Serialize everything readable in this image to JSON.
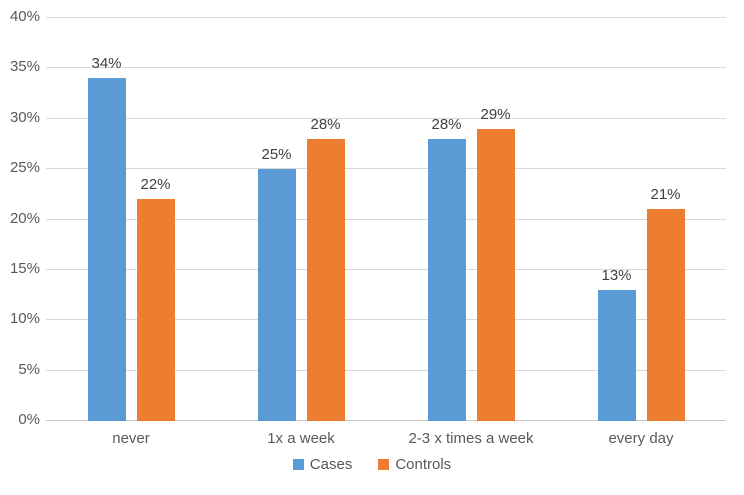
{
  "chart_data": {
    "type": "bar",
    "categories": [
      "never",
      "1x a week",
      "2-3 x times a week",
      "every day"
    ],
    "series": [
      {
        "name": "Cases",
        "color": "#5b9bd5",
        "values": [
          34,
          25,
          28,
          13
        ],
        "labels": [
          "34%",
          "25%",
          "28%",
          "13%"
        ]
      },
      {
        "name": "Controls",
        "color": "#ed7d31",
        "values": [
          22,
          28,
          29,
          21
        ],
        "labels": [
          "22%",
          "28%",
          "29%",
          "21%"
        ]
      }
    ],
    "y_ticks": [
      "0%",
      "5%",
      "10%",
      "15%",
      "20%",
      "25%",
      "30%",
      "35%",
      "40%"
    ],
    "ylim": [
      0,
      40
    ],
    "y_step": 5,
    "grid": true,
    "legend_position": "bottom"
  },
  "colors": {
    "background": "#ffffff",
    "gridline": "#d9d9d9",
    "axis_line": "#c6c6c6",
    "axis_text": "#595959",
    "data_label_text": "#404040"
  }
}
